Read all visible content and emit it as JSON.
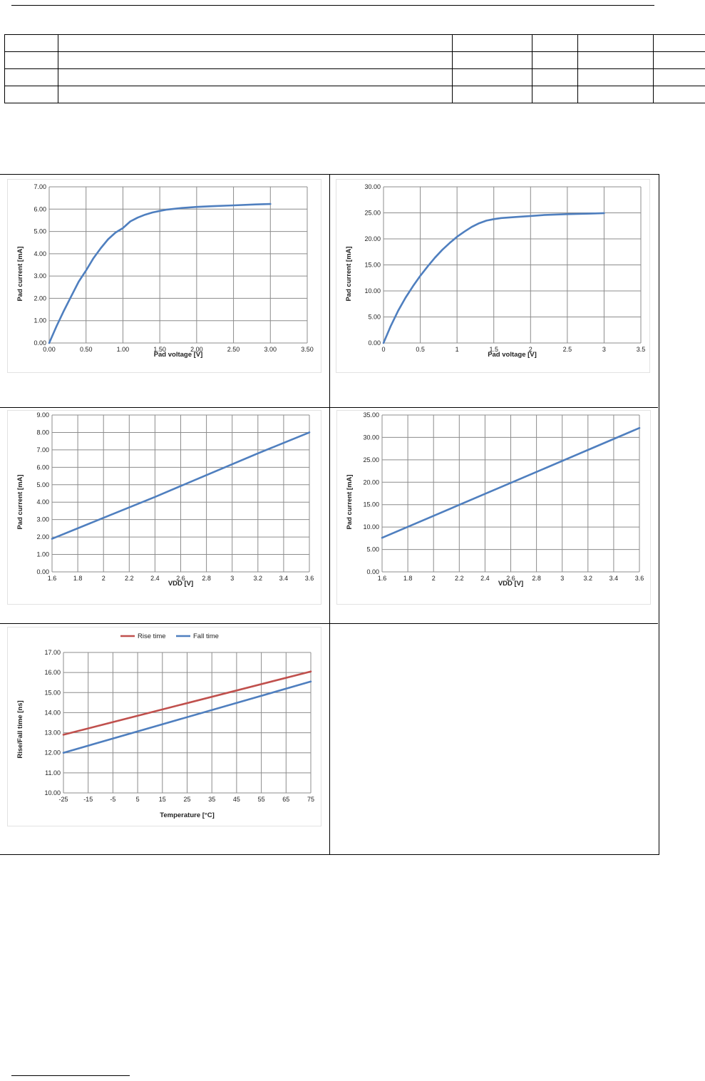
{
  "chart_data": [
    {
      "type": "line",
      "xlabel": "Pad voltage [V]",
      "ylabel": "Pad current [mA]",
      "xlim": [
        0,
        3.5
      ],
      "ylim": [
        0,
        7
      ],
      "xticks": [
        0,
        0.5,
        1,
        1.5,
        2,
        2.5,
        3,
        3.5
      ],
      "yticks": [
        0,
        1,
        2,
        3,
        4,
        5,
        6,
        7
      ],
      "xtick_labels": [
        "0.00",
        "0.50",
        "1.00",
        "1.50",
        "2.00",
        "2.50",
        "3.00",
        "3.50"
      ],
      "ytick_labels": [
        "0.00",
        "1.00",
        "2.00",
        "3.00",
        "4.00",
        "5.00",
        "6.00",
        "7.00"
      ],
      "grid": true,
      "series": [
        {
          "color": "#4f7fbf",
          "x": [
            0,
            0.1,
            0.2,
            0.3,
            0.4,
            0.5,
            0.6,
            0.7,
            0.8,
            0.9,
            1.0,
            1.1,
            1.2,
            1.3,
            1.4,
            1.5,
            1.6,
            1.8,
            2.0,
            2.2,
            2.5,
            2.8,
            3.0
          ],
          "y": [
            0,
            0.75,
            1.45,
            2.1,
            2.75,
            3.25,
            3.8,
            4.25,
            4.65,
            4.95,
            5.15,
            5.45,
            5.62,
            5.75,
            5.85,
            5.92,
            5.98,
            6.05,
            6.1,
            6.13,
            6.17,
            6.21,
            6.23
          ]
        }
      ]
    },
    {
      "type": "line",
      "xlabel": "Pad voltage [V]",
      "ylabel": "Pad current [mA]",
      "xlim": [
        0,
        3.5
      ],
      "ylim": [
        0,
        30
      ],
      "xticks": [
        0,
        0.5,
        1,
        1.5,
        2,
        2.5,
        3,
        3.5
      ],
      "yticks": [
        0,
        5,
        10,
        15,
        20,
        25,
        30
      ],
      "xtick_labels": [
        "0",
        "0.5",
        "1",
        "1.5",
        "2",
        "2.5",
        "3",
        "3.5"
      ],
      "ytick_labels": [
        "0.00",
        "5.00",
        "10.00",
        "15.00",
        "20.00",
        "25.00",
        "30.00"
      ],
      "grid": true,
      "series": [
        {
          "color": "#4f7fbf",
          "x": [
            0,
            0.1,
            0.2,
            0.3,
            0.4,
            0.5,
            0.6,
            0.7,
            0.8,
            0.9,
            1.0,
            1.1,
            1.2,
            1.3,
            1.4,
            1.5,
            1.6,
            1.8,
            2.0,
            2.2,
            2.5,
            2.8,
            3.0
          ],
          "y": [
            0,
            3.3,
            6.2,
            8.7,
            10.9,
            12.9,
            14.7,
            16.4,
            17.9,
            19.2,
            20.4,
            21.4,
            22.3,
            23.0,
            23.5,
            23.8,
            24.0,
            24.2,
            24.4,
            24.6,
            24.75,
            24.85,
            24.95
          ]
        }
      ]
    },
    {
      "type": "line",
      "xlabel": "VDD [V]",
      "ylabel": "Pad current [mA]",
      "xlim": [
        1.6,
        3.6
      ],
      "ylim": [
        0,
        9
      ],
      "xticks": [
        1.6,
        1.8,
        2,
        2.2,
        2.4,
        2.6,
        2.8,
        3,
        3.2,
        3.4,
        3.6
      ],
      "yticks": [
        0,
        1,
        2,
        3,
        4,
        5,
        6,
        7,
        8,
        9
      ],
      "xtick_labels": [
        "1.6",
        "1.8",
        "2",
        "2.2",
        "2.4",
        "2.6",
        "2.8",
        "3",
        "3.2",
        "3.4",
        "3.6"
      ],
      "ytick_labels": [
        "0.00",
        "1.00",
        "2.00",
        "3.00",
        "4.00",
        "5.00",
        "6.00",
        "7.00",
        "8.00",
        "9.00"
      ],
      "grid": true,
      "series": [
        {
          "color": "#4f7fbf",
          "x": [
            1.6,
            2.0,
            2.4,
            2.8,
            3.2,
            3.6
          ],
          "y": [
            1.9,
            3.1,
            4.3,
            5.55,
            6.8,
            8.0
          ]
        }
      ]
    },
    {
      "type": "line",
      "xlabel": "VDD [V]",
      "ylabel": "Pad current [mA]",
      "xlim": [
        1.6,
        3.6
      ],
      "ylim": [
        0,
        35
      ],
      "xticks": [
        1.6,
        1.8,
        2,
        2.2,
        2.4,
        2.6,
        2.8,
        3,
        3.2,
        3.4,
        3.6
      ],
      "yticks": [
        0,
        5,
        10,
        15,
        20,
        25,
        30,
        35
      ],
      "xtick_labels": [
        "1.6",
        "1.8",
        "2",
        "2.2",
        "2.4",
        "2.6",
        "2.8",
        "3",
        "3.2",
        "3.4",
        "3.6"
      ],
      "ytick_labels": [
        "0.00",
        "5.00",
        "10.00",
        "15.00",
        "20.00",
        "25.00",
        "30.00",
        "35.00"
      ],
      "grid": true,
      "series": [
        {
          "color": "#4f7fbf",
          "x": [
            1.6,
            2.0,
            2.4,
            2.8,
            3.2,
            3.6
          ],
          "y": [
            7.6,
            12.5,
            17.4,
            22.3,
            27.2,
            32.1
          ]
        }
      ]
    },
    {
      "type": "line",
      "xlabel": "Temperature [°C]",
      "ylabel": "Rise/Fall time [ns]",
      "xlim": [
        -25,
        75
      ],
      "ylim": [
        10,
        17
      ],
      "xticks": [
        -25,
        -15,
        -5,
        5,
        15,
        25,
        35,
        45,
        55,
        65,
        75
      ],
      "yticks": [
        10,
        11,
        12,
        13,
        14,
        15,
        16,
        17
      ],
      "xtick_labels": [
        "-25",
        "-15",
        "-5",
        "5",
        "15",
        "25",
        "35",
        "45",
        "55",
        "65",
        "75"
      ],
      "ytick_labels": [
        "10.00",
        "11.00",
        "12.00",
        "13.00",
        "14.00",
        "15.00",
        "16.00",
        "17.00"
      ],
      "grid": true,
      "legend": "top",
      "series": [
        {
          "name": "Rise time",
          "color": "#c0504d",
          "x": [
            -25,
            75
          ],
          "y": [
            12.9,
            16.05
          ]
        },
        {
          "name": "Fall time",
          "color": "#4f7fbf",
          "x": [
            -25,
            75
          ],
          "y": [
            12.0,
            15.55
          ]
        }
      ]
    }
  ]
}
